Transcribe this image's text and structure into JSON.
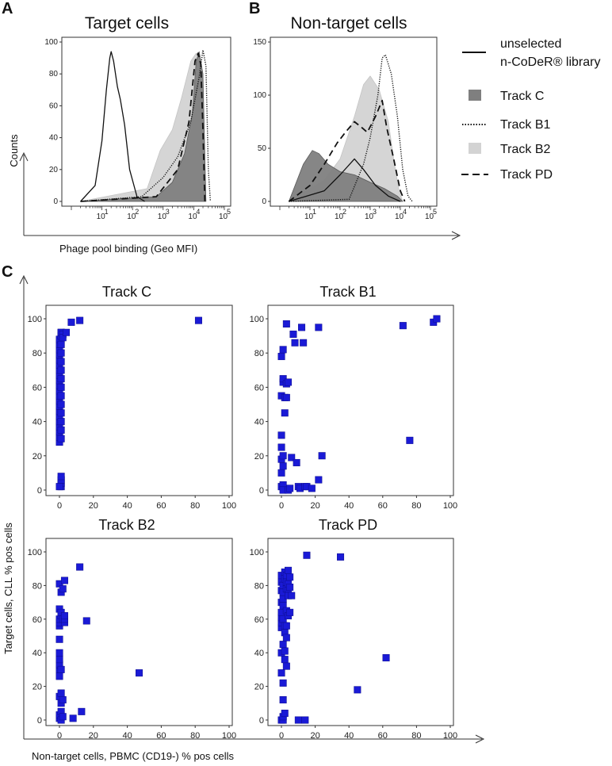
{
  "panel_labels": {
    "a": "A",
    "b": "B",
    "c": "C"
  },
  "top_shared_xlabel": "Phage pool binding (Geo MFI)",
  "bottom_shared_xlabel": "Non-target cells, PBMC (CD19-) % pos cells",
  "bottom_shared_ylabel": "Target cells, CLL % pos cells",
  "legend": [
    {
      "label_line1": "unselected",
      "label_line2": "n-CoDeR® library",
      "style": "solid"
    },
    {
      "label": "Track C",
      "style": "dark-fill",
      "color": "#7f7f7f"
    },
    {
      "label": "Track B1",
      "style": "dotted"
    },
    {
      "label": "Track B2",
      "style": "light-fill",
      "color": "#d3d3d3"
    },
    {
      "label": "Track PD",
      "style": "dashed"
    }
  ],
  "chart_data": [
    {
      "id": "A",
      "type": "area",
      "title": "Target cells",
      "ylabel": "Counts",
      "xlabel": "Phage pool binding (Geo MFI)",
      "xscale": "log",
      "xlim": [
        1,
        100000
      ],
      "ylim": [
        0,
        100
      ],
      "yticks": [
        "0",
        "20",
        "40",
        "60",
        "80",
        "100"
      ],
      "xticks": [
        {
          "base": "10",
          "exp": "1"
        },
        {
          "base": "10",
          "exp": "2"
        },
        {
          "base": "10",
          "exp": "3"
        },
        {
          "base": "10",
          "exp": "4"
        },
        {
          "base": "10",
          "exp": "5"
        }
      ],
      "series": [
        {
          "name": "Track B2",
          "style": "light-fill",
          "points": [
            [
              2,
              0
            ],
            [
              300,
              8
            ],
            [
              800,
              32
            ],
            [
              2000,
              45
            ],
            [
              4000,
              65
            ],
            [
              8000,
              88
            ],
            [
              12000,
              93
            ],
            [
              16000,
              92
            ],
            [
              20000,
              55
            ],
            [
              25000,
              0
            ]
          ]
        },
        {
          "name": "Track C",
          "style": "dark-fill",
          "points": [
            [
              2,
              0
            ],
            [
              600,
              3
            ],
            [
              2000,
              12
            ],
            [
              5000,
              30
            ],
            [
              9000,
              55
            ],
            [
              12000,
              88
            ],
            [
              15000,
              94
            ],
            [
              20000,
              80
            ],
            [
              25000,
              0
            ]
          ]
        },
        {
          "name": "unselected n-CoDeR® library",
          "style": "solid",
          "points": [
            [
              2,
              0
            ],
            [
              6,
              10
            ],
            [
              10,
              38
            ],
            [
              14,
              70
            ],
            [
              18,
              90
            ],
            [
              20,
              94
            ],
            [
              24,
              88
            ],
            [
              32,
              72
            ],
            [
              40,
              64
            ],
            [
              55,
              48
            ],
            [
              80,
              20
            ],
            [
              140,
              3
            ],
            [
              250,
              0
            ]
          ]
        },
        {
          "name": "Track B1",
          "style": "dotted",
          "points": [
            [
              2,
              0
            ],
            [
              200,
              3
            ],
            [
              1000,
              15
            ],
            [
              3000,
              28
            ],
            [
              8000,
              50
            ],
            [
              15000,
              78
            ],
            [
              20000,
              95
            ],
            [
              25000,
              85
            ],
            [
              30000,
              20
            ],
            [
              35000,
              0
            ]
          ]
        },
        {
          "name": "Track PD",
          "style": "dashed",
          "points": [
            [
              2,
              0
            ],
            [
              600,
              3
            ],
            [
              3000,
              20
            ],
            [
              7000,
              50
            ],
            [
              11000,
              88
            ],
            [
              14000,
              93
            ],
            [
              17000,
              86
            ],
            [
              20000,
              45
            ],
            [
              23000,
              0
            ]
          ]
        }
      ]
    },
    {
      "id": "B",
      "type": "area",
      "title": "Non-target cells",
      "xscale": "log",
      "xlim": [
        1,
        100000
      ],
      "ylim": [
        0,
        150
      ],
      "yticks": [
        "0",
        "50",
        "100",
        "150"
      ],
      "xticks": [
        {
          "base": "10",
          "exp": "1"
        },
        {
          "base": "10",
          "exp": "2"
        },
        {
          "base": "10",
          "exp": "3"
        },
        {
          "base": "10",
          "exp": "4"
        },
        {
          "base": "10",
          "exp": "5"
        }
      ],
      "series": [
        {
          "name": "Track B2",
          "style": "light-fill",
          "points": [
            [
              2,
              0
            ],
            [
              30,
              20
            ],
            [
              100,
              40
            ],
            [
              300,
              80
            ],
            [
              600,
              110
            ],
            [
              1000,
              118
            ],
            [
              2000,
              105
            ],
            [
              4000,
              75
            ],
            [
              6000,
              40
            ],
            [
              9000,
              10
            ],
            [
              12000,
              0
            ]
          ]
        },
        {
          "name": "Track C",
          "style": "dark-fill",
          "points": [
            [
              2,
              0
            ],
            [
              6,
              35
            ],
            [
              12,
              48
            ],
            [
              20,
              45
            ],
            [
              40,
              35
            ],
            [
              100,
              28
            ],
            [
              300,
              25
            ],
            [
              1000,
              18
            ],
            [
              3000,
              12
            ],
            [
              8000,
              5
            ],
            [
              12000,
              0
            ]
          ]
        },
        {
          "name": "unselected n-CoDeR® library",
          "style": "solid",
          "points": [
            [
              2,
              0
            ],
            [
              30,
              10
            ],
            [
              100,
              25
            ],
            [
              300,
              40
            ],
            [
              600,
              30
            ],
            [
              1500,
              15
            ],
            [
              4000,
              5
            ],
            [
              10000,
              0
            ]
          ]
        },
        {
          "name": "Track B1",
          "style": "dotted",
          "points": [
            [
              2,
              0
            ],
            [
              200,
              2
            ],
            [
              600,
              35
            ],
            [
              1000,
              60
            ],
            [
              1800,
              100
            ],
            [
              2500,
              135
            ],
            [
              3200,
              138
            ],
            [
              5000,
              120
            ],
            [
              8000,
              80
            ],
            [
              12000,
              30
            ],
            [
              18000,
              5
            ],
            [
              25000,
              0
            ]
          ]
        },
        {
          "name": "Track PD",
          "style": "dashed",
          "points": [
            [
              2,
              0
            ],
            [
              10,
              15
            ],
            [
              30,
              35
            ],
            [
              80,
              55
            ],
            [
              150,
              65
            ],
            [
              300,
              75
            ],
            [
              500,
              70
            ],
            [
              800,
              65
            ],
            [
              1500,
              80
            ],
            [
              2500,
              95
            ],
            [
              3500,
              70
            ],
            [
              6000,
              40
            ],
            [
              10000,
              10
            ],
            [
              14000,
              0
            ]
          ]
        }
      ]
    },
    {
      "id": "C1",
      "type": "scatter",
      "title": "Track C",
      "xlim": [
        0,
        100
      ],
      "ylim": [
        0,
        100
      ],
      "xticks": [
        "0",
        "20",
        "40",
        "60",
        "80",
        "100"
      ],
      "yticks": [
        "0",
        "20",
        "40",
        "60",
        "80",
        "100"
      ],
      "x": [
        0,
        0,
        0,
        0,
        0,
        0,
        0,
        0,
        0,
        0,
        0,
        0,
        0,
        0,
        0,
        0,
        0,
        0,
        0,
        0,
        0,
        1,
        1,
        1,
        1,
        1,
        1,
        1,
        1,
        1,
        1,
        1,
        1,
        1,
        1,
        1,
        1,
        1,
        1,
        0,
        1,
        1,
        2,
        2,
        4,
        7,
        12,
        82
      ],
      "y": [
        28,
        31,
        34,
        37,
        40,
        43,
        46,
        49,
        52,
        55,
        58,
        61,
        64,
        67,
        70,
        73,
        76,
        79,
        82,
        85,
        88,
        30,
        35,
        40,
        45,
        50,
        55,
        60,
        65,
        70,
        75,
        80,
        85,
        90,
        92,
        2,
        4,
        6,
        8,
        2,
        90,
        92,
        91,
        89,
        92,
        98,
        99,
        99
      ]
    },
    {
      "id": "C2",
      "type": "scatter",
      "title": "Track B1",
      "xlim": [
        0,
        100
      ],
      "ylim": [
        0,
        100
      ],
      "xticks": [
        "0",
        "20",
        "40",
        "60",
        "80",
        "100"
      ],
      "yticks": [
        "0",
        "20",
        "40",
        "60",
        "80",
        "100"
      ],
      "x": [
        0,
        0,
        0,
        0,
        0,
        0,
        0,
        1,
        1,
        1,
        1,
        1,
        1,
        1,
        2,
        2,
        3,
        3,
        3,
        4,
        4,
        5,
        6,
        7,
        8,
        9,
        10,
        11,
        12,
        13,
        14,
        15,
        18,
        22,
        22,
        24,
        72,
        76,
        90,
        92
      ],
      "y": [
        2,
        10,
        18,
        25,
        32,
        55,
        78,
        63,
        65,
        3,
        0,
        14,
        20,
        82,
        54,
        45,
        97,
        62,
        54,
        63,
        0,
        1,
        19,
        91,
        86,
        16,
        2,
        1,
        95,
        86,
        2,
        2,
        1,
        95,
        6,
        20,
        96,
        29,
        98,
        100
      ]
    },
    {
      "id": "C3",
      "type": "scatter",
      "title": "Track B2",
      "xlim": [
        0,
        100
      ],
      "ylim": [
        0,
        100
      ],
      "xticks": [
        "0",
        "20",
        "40",
        "60",
        "80",
        "100"
      ],
      "yticks": [
        "0",
        "20",
        "40",
        "60",
        "80",
        "100"
      ],
      "x": [
        0,
        0,
        0,
        0,
        0,
        0,
        0,
        0,
        0,
        0,
        0,
        0,
        0,
        0,
        1,
        1,
        1,
        1,
        1,
        1,
        1,
        1,
        2,
        2,
        2,
        2,
        3,
        3,
        3,
        3,
        8,
        12,
        13,
        16,
        47
      ],
      "y": [
        1,
        3,
        14,
        26,
        30,
        33,
        36,
        40,
        48,
        56,
        58,
        60,
        66,
        81,
        0,
        5,
        10,
        16,
        30,
        62,
        64,
        76,
        2,
        12,
        60,
        78,
        58,
        60,
        62,
        83,
        1,
        91,
        5,
        59,
        28
      ]
    },
    {
      "id": "C4",
      "type": "scatter",
      "title": "Track PD",
      "xlim": [
        0,
        100
      ],
      "ylim": [
        0,
        100
      ],
      "xticks": [
        "0",
        "20",
        "40",
        "60",
        "80",
        "100"
      ],
      "yticks": [
        "0",
        "20",
        "40",
        "60",
        "80",
        "100"
      ],
      "x": [
        0,
        0,
        0,
        0,
        0,
        0,
        0,
        0,
        0,
        0,
        0,
        1,
        1,
        1,
        1,
        1,
        1,
        1,
        1,
        1,
        1,
        2,
        2,
        2,
        2,
        2,
        2,
        2,
        3,
        3,
        3,
        3,
        3,
        3,
        3,
        4,
        4,
        4,
        4,
        4,
        5,
        5,
        5,
        6,
        10,
        14,
        15,
        35,
        45,
        62
      ],
      "y": [
        0,
        28,
        40,
        55,
        58,
        61,
        64,
        70,
        77,
        82,
        86,
        0,
        2,
        12,
        22,
        45,
        60,
        68,
        72,
        76,
        80,
        84,
        88,
        4,
        36,
        41,
        52,
        56,
        65,
        78,
        82,
        86,
        32,
        49,
        56,
        62,
        74,
        78,
        81,
        89,
        64,
        79,
        85,
        74,
        0,
        0,
        98,
        97,
        18,
        37
      ]
    }
  ]
}
